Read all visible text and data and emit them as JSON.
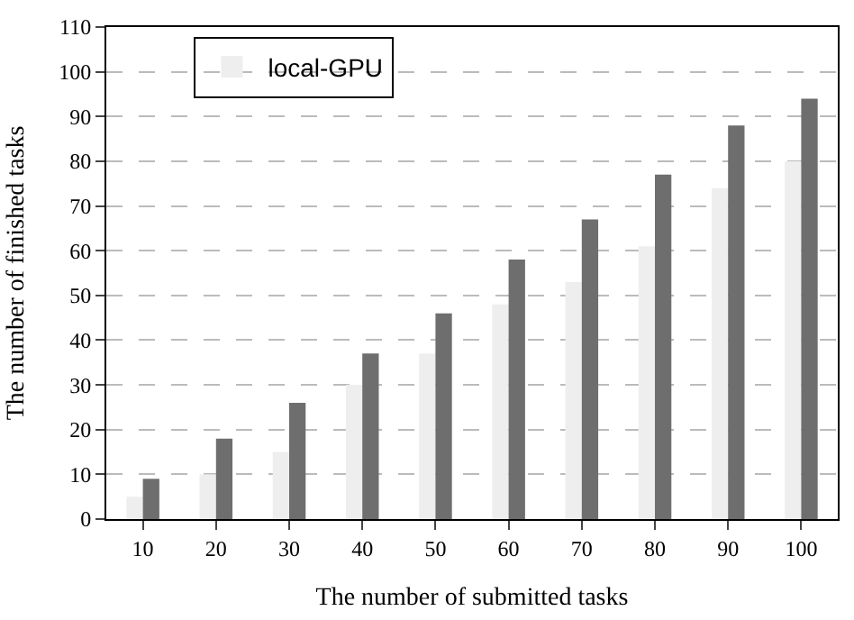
{
  "chart_data": {
    "type": "bar",
    "xlabel": "The number of submitted tasks",
    "ylabel": "The number of finished tasks",
    "categories": [
      "10",
      "20",
      "30",
      "40",
      "50",
      "60",
      "70",
      "80",
      "90",
      "100"
    ],
    "series": [
      {
        "name": "local-GPU",
        "color": "#eeeeee",
        "values": [
          5,
          10,
          15,
          30,
          37,
          48,
          53,
          61,
          74,
          80
        ]
      },
      {
        "color": "#6e6e6e",
        "values": [
          9,
          18,
          26,
          37,
          46,
          58,
          67,
          77,
          88,
          94
        ]
      }
    ],
    "ylim": [
      0,
      110
    ],
    "yticks": [
      0,
      10,
      20,
      30,
      40,
      50,
      60,
      70,
      80,
      90,
      100,
      110
    ],
    "grid": "y",
    "legend": "top left"
  }
}
